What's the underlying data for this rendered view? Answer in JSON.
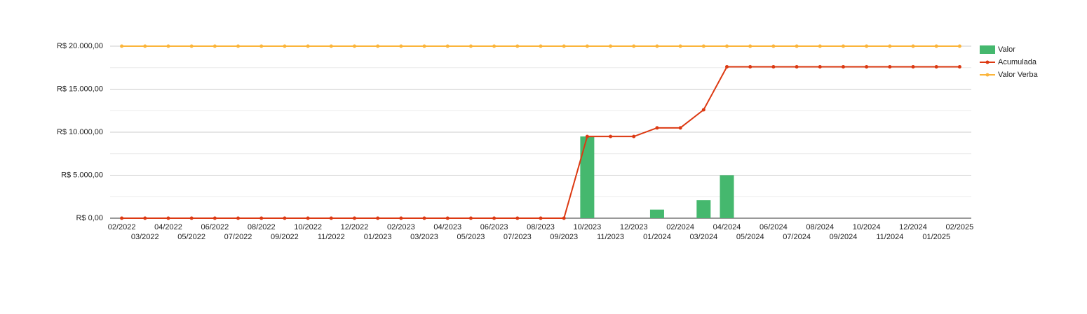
{
  "chart_data": {
    "type": "combo",
    "categories": [
      "02/2022",
      "03/2022",
      "04/2022",
      "05/2022",
      "06/2022",
      "07/2022",
      "08/2022",
      "09/2022",
      "10/2022",
      "11/2022",
      "12/2022",
      "01/2023",
      "02/2023",
      "03/2023",
      "04/2023",
      "05/2023",
      "06/2023",
      "07/2023",
      "08/2023",
      "09/2023",
      "10/2023",
      "11/2023",
      "12/2023",
      "01/2024",
      "02/2024",
      "03/2024",
      "04/2024",
      "05/2024",
      "06/2024",
      "07/2024",
      "08/2024",
      "09/2024",
      "10/2024",
      "11/2024",
      "12/2024",
      "01/2025",
      "02/2025"
    ],
    "series": [
      {
        "name": "Valor",
        "type": "bar",
        "color": "#45b86e",
        "values": [
          0,
          0,
          0,
          0,
          0,
          0,
          0,
          0,
          0,
          0,
          0,
          0,
          0,
          0,
          0,
          0,
          0,
          0,
          0,
          0,
          9500,
          0,
          0,
          1000,
          0,
          2100,
          5000,
          0,
          0,
          0,
          0,
          0,
          0,
          0,
          0,
          0,
          0
        ]
      },
      {
        "name": "Acumulada",
        "type": "line",
        "color": "#dc3912",
        "values": [
          0,
          0,
          0,
          0,
          0,
          0,
          0,
          0,
          0,
          0,
          0,
          0,
          0,
          0,
          0,
          0,
          0,
          0,
          0,
          0,
          9500,
          9500,
          9500,
          10500,
          10500,
          12600,
          17600,
          17600,
          17600,
          17600,
          17600,
          17600,
          17600,
          17600,
          17600,
          17600,
          17600
        ]
      },
      {
        "name": "Valor Verba",
        "type": "line",
        "color": "#fbb53b",
        "values": [
          20000,
          20000,
          20000,
          20000,
          20000,
          20000,
          20000,
          20000,
          20000,
          20000,
          20000,
          20000,
          20000,
          20000,
          20000,
          20000,
          20000,
          20000,
          20000,
          20000,
          20000,
          20000,
          20000,
          20000,
          20000,
          20000,
          20000,
          20000,
          20000,
          20000,
          20000,
          20000,
          20000,
          20000,
          20000,
          20000,
          20000
        ]
      }
    ],
    "ylim": [
      0,
      20000
    ],
    "yticks": [
      {
        "value": 0,
        "label": "R$ 0,00"
      },
      {
        "value": 5000,
        "label": "R$ 5.000,00"
      },
      {
        "value": 10000,
        "label": "R$ 10.000,00"
      },
      {
        "value": 15000,
        "label": "R$ 15.000,00"
      },
      {
        "value": 20000,
        "label": "R$ 20.000,00"
      }
    ],
    "grid": true,
    "legend": "right"
  }
}
